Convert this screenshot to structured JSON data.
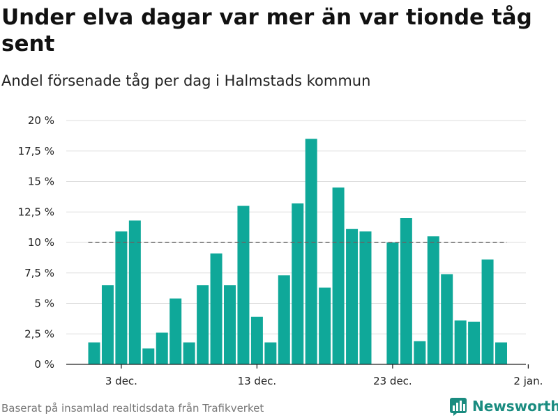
{
  "header": {
    "title": "Under elva dagar var mer än var tionde tåg sent",
    "subtitle": "Andel försenade tåg per dag i Halmstads kommun"
  },
  "footer": {
    "source": "Baserat på insamlad realtidsdata från Trafikverket",
    "brand": "Newsworthy"
  },
  "colors": {
    "bar": "#0fa899",
    "reference_line": "#666666",
    "grid": "#dddddd",
    "brand": "#1a8c80"
  },
  "chart_data": {
    "type": "bar",
    "x_start_day": 1,
    "values": [
      1.8,
      6.5,
      10.9,
      11.8,
      1.3,
      2.6,
      5.4,
      1.8,
      6.5,
      9.1,
      6.5,
      13.0,
      3.9,
      1.8,
      7.3,
      13.2,
      18.5,
      6.3,
      14.5,
      11.1,
      10.9,
      null,
      10.0,
      12.0,
      1.9,
      10.5,
      7.4,
      3.6,
      3.5,
      8.6,
      1.8
    ],
    "reference_value": 10,
    "ylim": [
      0,
      20
    ],
    "y_ticks": [
      {
        "value": 0,
        "label": "0 %"
      },
      {
        "value": 2.5,
        "label": "2,5 %"
      },
      {
        "value": 5,
        "label": "5 %"
      },
      {
        "value": 7.5,
        "label": "7,5 %"
      },
      {
        "value": 10,
        "label": "10 %"
      },
      {
        "value": 12.5,
        "label": "12,5 %"
      },
      {
        "value": 15,
        "label": "15 %"
      },
      {
        "value": 17.5,
        "label": "17,5 %"
      },
      {
        "value": 20,
        "label": "20 %"
      }
    ],
    "x_ticks": [
      {
        "day": 3,
        "label": "3 dec."
      },
      {
        "day": 13,
        "label": "13 dec."
      },
      {
        "day": 23,
        "label": "23 dec."
      },
      {
        "day": 33,
        "label": "2 jan."
      }
    ],
    "grid": true
  }
}
